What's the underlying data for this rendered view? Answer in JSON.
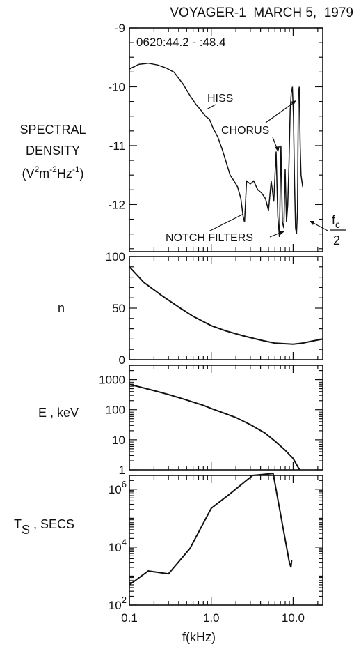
{
  "figure": {
    "title": "VOYAGER-1  MARCH 5,  1979",
    "xlabel": "f(kHz)",
    "x_ticks": [
      "0.1",
      "1.0",
      "10.0"
    ]
  },
  "chart_data": [
    {
      "type": "line",
      "name": "spectral-density",
      "time_label": "0620:44.2 - :48.4",
      "ylabel_lines": [
        "SPECTRAL",
        "DENSITY"
      ],
      "ylabel_units": {
        "base1": "(V",
        "exp1": "2",
        "base2": "m",
        "exp2": "-2",
        "base3": "Hz",
        "exp3": "-1",
        "close": ")"
      },
      "x_scale": "log",
      "xlim": [
        0.1,
        23
      ],
      "y_scale": "log10",
      "ylim": [
        -12.8,
        -9
      ],
      "y_ticks": [
        -9,
        -10,
        -11,
        -12
      ],
      "y_tick_labels": [
        "-9",
        "-10",
        "-11",
        "-12"
      ],
      "x": [
        0.1,
        0.13,
        0.17,
        0.22,
        0.28,
        0.35,
        0.45,
        0.55,
        0.65,
        0.75,
        0.85,
        0.95,
        1.05,
        1.2,
        1.35,
        1.5,
        1.7,
        1.9,
        2.1,
        2.3,
        2.45,
        2.55,
        2.7,
        3.0,
        3.3,
        3.7,
        4.1,
        4.6,
        5.0,
        5.4,
        5.8,
        6.2,
        6.5,
        6.8,
        7.1,
        7.4,
        7.7,
        8.0,
        8.3,
        8.6,
        8.9,
        9.2,
        9.5,
        9.8,
        10.1,
        10.4,
        10.7,
        11.0,
        11.3,
        11.6,
        11.9,
        12.2,
        12.5,
        12.8,
        13.1
      ],
      "y": [
        -9.7,
        -9.62,
        -9.6,
        -9.63,
        -9.68,
        -9.75,
        -9.95,
        -10.15,
        -10.3,
        -10.4,
        -10.5,
        -10.55,
        -10.7,
        -10.85,
        -11.05,
        -11.25,
        -11.5,
        -11.6,
        -11.7,
        -11.9,
        -12.2,
        -12.3,
        -11.6,
        -11.65,
        -11.6,
        -11.75,
        -11.8,
        -11.9,
        -12.1,
        -11.6,
        -11.95,
        -11.1,
        -12.2,
        -12.55,
        -11.0,
        -12.3,
        -12.4,
        -11.4,
        -12.3,
        -12.0,
        -11.3,
        -10.4,
        -10.1,
        -10.0,
        -10.5,
        -11.6,
        -12.4,
        -12.5,
        -12.1,
        -10.1,
        -10.0,
        -11.0,
        -11.5,
        -11.6,
        -11.7
      ],
      "annotations": [
        "HISS",
        "CHORUS",
        "NOTCH FILTERS"
      ],
      "fc_label": {
        "numerator": "f",
        "subscript": "c",
        "denominator": "2"
      }
    },
    {
      "type": "line",
      "name": "n",
      "ylabel": "n",
      "x_scale": "log",
      "xlim": [
        0.1,
        23
      ],
      "y_scale": "linear",
      "ylim": [
        0,
        100
      ],
      "y_ticks": [
        0,
        50,
        100
      ],
      "y_tick_labels": [
        "0",
        "50",
        "100"
      ],
      "x": [
        0.1,
        0.15,
        0.25,
        0.4,
        0.6,
        1.0,
        1.5,
        2.5,
        4.0,
        6.0,
        10.0,
        13.0,
        17.0,
        23.0
      ],
      "y": [
        90,
        75,
        62,
        51,
        42,
        33,
        28,
        23,
        19,
        16,
        15,
        16,
        18,
        20
      ]
    },
    {
      "type": "line",
      "name": "energy",
      "ylabel": "E , keV",
      "x_scale": "log",
      "xlim": [
        0.1,
        23
      ],
      "y_scale": "log",
      "ylim": [
        1,
        3000
      ],
      "y_ticks": [
        1,
        10,
        100,
        1000
      ],
      "y_tick_labels": [
        "1",
        "10",
        "100",
        "1000"
      ],
      "x": [
        0.1,
        0.2,
        0.3,
        0.5,
        0.8,
        1.0,
        2.0,
        3.0,
        4.5,
        6.0,
        8.0,
        10.0,
        12.0
      ],
      "y": [
        700,
        430,
        320,
        210,
        140,
        110,
        55,
        32,
        17,
        9,
        4.5,
        2.4,
        1.0
      ]
    },
    {
      "type": "line",
      "name": "time-scale",
      "ylabel": {
        "base": "T",
        "subscript": "S",
        "rest": " , SECS"
      },
      "x_scale": "log",
      "xlim": [
        0.1,
        23
      ],
      "y_scale": "log",
      "ylim": [
        100,
        3000000
      ],
      "y_ticks": [
        100,
        10000,
        1000000
      ],
      "y_tick_labels": [
        {
          "base": "10",
          "exp": "2"
        },
        {
          "base": "10",
          "exp": "4"
        },
        {
          "base": "10",
          "exp": "6"
        }
      ],
      "x": [
        0.1,
        0.17,
        0.3,
        0.55,
        1.0,
        1.7,
        3.2,
        5.7,
        7.5,
        9.0,
        9.4,
        9.6
      ],
      "y": [
        500,
        1500,
        1200,
        9000,
        220000,
        700000,
        3000000,
        3500000,
        50000,
        3000,
        2000,
        3500
      ]
    }
  ]
}
